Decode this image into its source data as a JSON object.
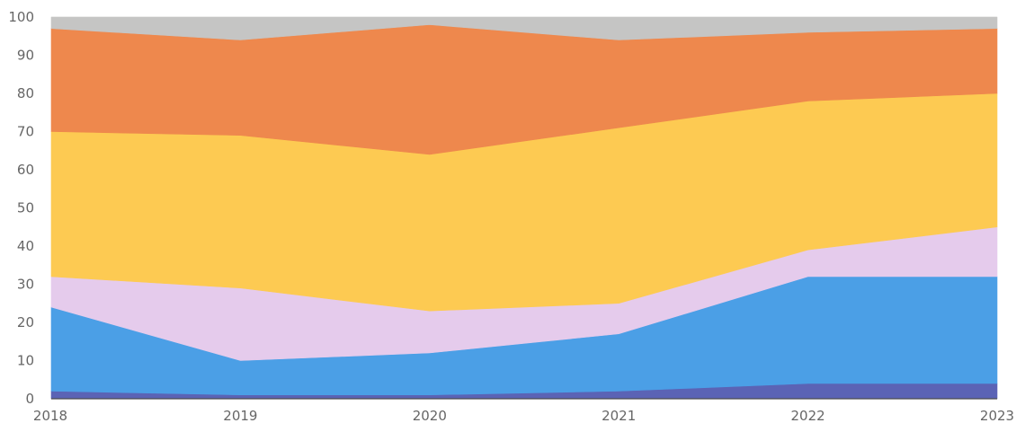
{
  "chart_data": {
    "type": "area",
    "stacked": true,
    "x": [
      "2018",
      "2019",
      "2020",
      "2021",
      "2022",
      "2023"
    ],
    "ylim": [
      0,
      100
    ],
    "yticks": [
      0,
      10,
      20,
      30,
      40,
      50,
      60,
      70,
      80,
      90,
      100
    ],
    "grid": "horizontal",
    "legend": "none",
    "title": "",
    "xlabel": "",
    "ylabel": "",
    "series": [
      {
        "color": "#5b63b5",
        "values": [
          2,
          1,
          1,
          2,
          4,
          4
        ]
      },
      {
        "color": "#4b9fe6",
        "values": [
          22,
          9,
          11,
          15,
          28,
          28
        ]
      },
      {
        "color": "#e5cbec",
        "values": [
          8,
          19,
          11,
          8,
          7,
          13
        ]
      },
      {
        "color": "#fdca52",
        "values": [
          38,
          40,
          41,
          46,
          39,
          35
        ]
      },
      {
        "color": "#ee884d",
        "values": [
          27,
          25,
          34,
          23,
          18,
          17
        ]
      },
      {
        "color": "#c5c5c4",
        "values": [
          3,
          6,
          2,
          6,
          4,
          3
        ]
      }
    ]
  }
}
